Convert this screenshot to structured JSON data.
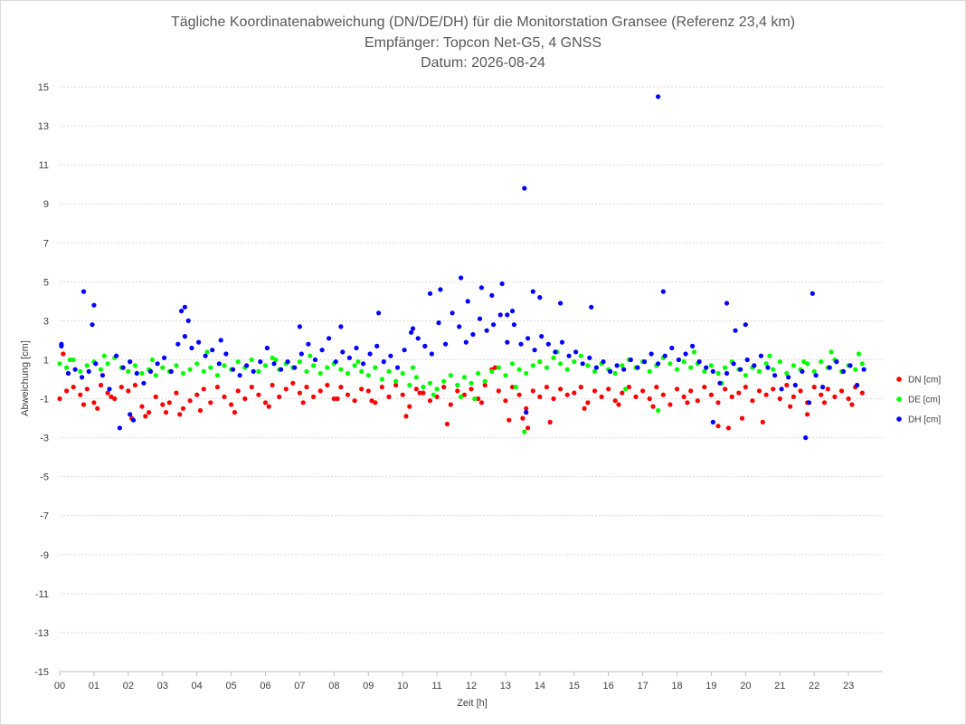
{
  "chart_data": {
    "type": "scatter",
    "title_lines": [
      "Tägliche Koordinatenabweichung (DN/DE/DH) für die Monitorstation Gransee (Referenz 23,4 km)",
      "Empfänger: Topcon Net-G5, 4 GNSS",
      "Datum: 2026-08-24"
    ],
    "xlabel": "Zeit [h]",
    "ylabel": "Abweichung [cm]",
    "xlim": [
      0,
      24
    ],
    "ylim": [
      -15,
      15
    ],
    "x_ticks": [
      0,
      1,
      2,
      3,
      4,
      5,
      6,
      7,
      8,
      9,
      10,
      11,
      12,
      13,
      14,
      15,
      16,
      17,
      18,
      19,
      20,
      21,
      22,
      23
    ],
    "x_tick_labels": [
      "00",
      "01",
      "02",
      "03",
      "04",
      "05",
      "06",
      "07",
      "08",
      "09",
      "10",
      "11",
      "12",
      "13",
      "14",
      "15",
      "16",
      "17",
      "18",
      "19",
      "20",
      "21",
      "22",
      "23"
    ],
    "y_ticks": [
      -15,
      -13,
      -11,
      -9,
      -7,
      -5,
      -3,
      -1,
      1,
      3,
      5,
      7,
      9,
      11,
      13,
      15
    ],
    "y_tick_labels": [
      "-15",
      "-13",
      "-11",
      "-9",
      "-7",
      "-5",
      "-3",
      "-1",
      "1",
      "3",
      "5",
      "7",
      "9",
      "11",
      "13",
      "15"
    ],
    "grid": true,
    "legend_position": "right",
    "series": [
      {
        "name": "DN [cm]",
        "color": "#ff0000",
        "x": [
          0.0,
          0.2,
          0.4,
          0.6,
          0.8,
          1.0,
          1.2,
          1.4,
          1.6,
          1.8,
          2.0,
          2.2,
          2.4,
          2.6,
          2.8,
          3.0,
          3.2,
          3.4,
          3.6,
          3.8,
          4.0,
          4.2,
          4.4,
          4.6,
          4.8,
          5.0,
          5.2,
          5.4,
          5.6,
          5.8,
          6.0,
          6.2,
          6.4,
          6.6,
          6.8,
          7.0,
          7.2,
          7.4,
          7.6,
          7.8,
          8.0,
          8.2,
          8.4,
          8.6,
          8.8,
          9.0,
          9.2,
          9.4,
          9.6,
          9.8,
          10.0,
          10.2,
          10.4,
          10.6,
          10.8,
          11.0,
          11.2,
          11.4,
          11.6,
          11.8,
          12.0,
          12.2,
          12.4,
          12.6,
          12.8,
          13.0,
          13.2,
          13.4,
          13.6,
          13.8,
          14.0,
          14.2,
          14.4,
          14.6,
          14.8,
          15.0,
          15.2,
          15.4,
          15.6,
          15.8,
          16.0,
          16.2,
          16.4,
          16.6,
          16.8,
          17.0,
          17.2,
          17.4,
          17.6,
          17.8,
          18.0,
          18.2,
          18.4,
          18.6,
          18.8,
          19.0,
          19.2,
          19.4,
          19.6,
          19.8,
          20.0,
          20.2,
          20.4,
          20.6,
          20.8,
          21.0,
          21.2,
          21.4,
          21.6,
          21.8,
          22.0,
          22.2,
          22.4,
          22.6,
          22.8,
          23.0,
          23.2,
          23.4,
          0.1,
          0.7,
          1.1,
          1.5,
          2.1,
          2.5,
          3.1,
          3.5,
          4.1,
          5.1,
          6.1,
          7.1,
          8.1,
          9.1,
          10.1,
          10.5,
          11.3,
          12.3,
          12.7,
          13.1,
          13.5,
          13.65,
          14.3,
          15.3,
          16.3,
          17.3,
          18.3,
          19.2,
          19.5,
          19.9,
          20.5,
          21.3,
          21.8,
          22.3,
          23.1
        ],
        "y": [
          -1.0,
          -0.6,
          -0.4,
          -0.8,
          -0.5,
          -1.2,
          -0.3,
          -0.7,
          -1.0,
          -0.4,
          -0.6,
          -0.3,
          -1.4,
          -1.7,
          -0.9,
          -1.3,
          -1.2,
          -0.7,
          -1.5,
          -1.1,
          -0.8,
          -0.5,
          -1.2,
          -0.4,
          -0.9,
          -1.3,
          -0.6,
          -1.0,
          -0.4,
          -0.8,
          -1.2,
          -0.3,
          -0.9,
          -0.5,
          -0.2,
          -0.7,
          -0.4,
          -0.9,
          -0.6,
          -0.3,
          -1.0,
          -0.4,
          -0.8,
          -1.1,
          -0.5,
          -0.6,
          -1.2,
          -0.4,
          -0.9,
          -0.3,
          -0.8,
          -1.4,
          -0.5,
          -0.7,
          -1.1,
          -0.9,
          -0.4,
          -1.3,
          -0.6,
          -0.8,
          -0.5,
          -1.0,
          -0.3,
          0.5,
          -0.6,
          -1.1,
          -0.4,
          -0.8,
          -1.5,
          -0.6,
          -0.9,
          -0.4,
          -1.0,
          -0.5,
          -0.8,
          -0.7,
          -0.4,
          -1.2,
          -0.6,
          -0.9,
          -0.5,
          -1.1,
          -0.7,
          -0.4,
          -0.9,
          -0.6,
          -1.0,
          -0.4,
          -0.8,
          -1.3,
          -0.5,
          -0.9,
          -0.6,
          -1.1,
          -0.4,
          -0.8,
          -1.2,
          -0.5,
          -0.9,
          -0.7,
          -0.4,
          -1.1,
          -0.6,
          -0.8,
          -0.5,
          -1.0,
          -0.3,
          -0.9,
          -0.6,
          -1.2,
          -0.4,
          -0.8,
          -0.5,
          -0.9,
          -0.6,
          -1.0,
          -0.4,
          -0.7,
          1.3,
          -1.3,
          -1.5,
          -0.9,
          -2.0,
          -1.9,
          -1.7,
          -1.8,
          -1.6,
          -1.7,
          -1.4,
          -1.2,
          -1.0,
          -1.1,
          -1.9,
          -0.7,
          -2.3,
          -1.2,
          0.6,
          -2.1,
          -2.0,
          -2.5,
          -2.2,
          -1.5,
          -1.3,
          -1.4,
          -1.2,
          -2.4,
          -2.5,
          -2.0,
          -2.2,
          -1.4,
          -1.8,
          -1.2,
          -1.3
        ]
      },
      {
        "name": "DE [cm]",
        "color": "#00ff00",
        "x": [
          0.0,
          0.2,
          0.4,
          0.6,
          0.8,
          1.0,
          1.2,
          1.4,
          1.6,
          1.8,
          2.0,
          2.2,
          2.4,
          2.6,
          2.8,
          3.0,
          3.2,
          3.4,
          3.6,
          3.8,
          4.0,
          4.2,
          4.4,
          4.6,
          4.8,
          5.0,
          5.2,
          5.4,
          5.6,
          5.8,
          6.0,
          6.2,
          6.4,
          6.6,
          6.8,
          7.0,
          7.2,
          7.4,
          7.6,
          7.8,
          8.0,
          8.2,
          8.4,
          8.6,
          8.8,
          9.0,
          9.2,
          9.4,
          9.6,
          9.8,
          10.0,
          10.2,
          10.4,
          10.6,
          10.8,
          11.0,
          11.2,
          11.4,
          11.6,
          11.8,
          12.0,
          12.2,
          12.4,
          12.6,
          12.8,
          13.0,
          13.2,
          13.4,
          13.6,
          13.8,
          14.0,
          14.2,
          14.4,
          14.6,
          14.8,
          15.0,
          15.2,
          15.4,
          15.6,
          15.8,
          16.0,
          16.2,
          16.4,
          16.6,
          16.8,
          17.0,
          17.2,
          17.4,
          17.6,
          17.8,
          18.0,
          18.2,
          18.4,
          18.6,
          18.8,
          19.0,
          19.2,
          19.4,
          19.6,
          19.8,
          20.0,
          20.2,
          20.4,
          20.6,
          20.8,
          21.0,
          21.2,
          21.4,
          21.6,
          21.8,
          22.0,
          22.2,
          22.4,
          22.6,
          22.8,
          23.0,
          23.2,
          23.4,
          0.3,
          1.3,
          2.7,
          4.3,
          6.3,
          7.3,
          8.7,
          10.3,
          10.9,
          11.7,
          12.1,
          13.3,
          13.55,
          14.5,
          16.5,
          17.45,
          18.5,
          19.3,
          20.7,
          21.7,
          22.5,
          23.3
        ],
        "y": [
          0.8,
          0.6,
          1.0,
          0.4,
          0.7,
          0.9,
          0.5,
          0.8,
          1.1,
          0.6,
          0.4,
          0.7,
          0.3,
          0.5,
          0.2,
          0.6,
          0.4,
          0.7,
          0.3,
          0.5,
          0.8,
          0.4,
          0.6,
          0.2,
          0.7,
          0.5,
          0.9,
          0.6,
          1.0,
          0.4,
          0.7,
          1.1,
          0.5,
          0.8,
          0.6,
          0.9,
          0.4,
          0.7,
          0.3,
          0.6,
          0.8,
          0.5,
          0.3,
          0.7,
          0.4,
          0.2,
          0.6,
          0.0,
          0.4,
          -0.1,
          0.3,
          -0.3,
          0.1,
          -0.4,
          -0.2,
          -0.5,
          -0.1,
          0.2,
          -0.3,
          0.1,
          -0.2,
          0.3,
          -0.1,
          0.4,
          0.6,
          0.2,
          0.8,
          0.5,
          0.3,
          0.7,
          0.9,
          0.6,
          1.1,
          0.8,
          0.5,
          0.9,
          1.2,
          0.7,
          0.4,
          0.8,
          0.5,
          0.3,
          0.7,
          1.0,
          0.6,
          0.9,
          0.4,
          0.7,
          1.1,
          0.8,
          0.5,
          0.9,
          0.6,
          0.8,
          0.4,
          0.7,
          0.3,
          0.6,
          0.9,
          0.5,
          0.2,
          0.6,
          0.4,
          0.8,
          0.5,
          0.9,
          0.3,
          0.7,
          0.5,
          0.8,
          0.4,
          0.9,
          0.6,
          1.0,
          0.4,
          0.7,
          0.5,
          0.8,
          1.0,
          1.2,
          1.0,
          1.4,
          1.0,
          1.2,
          0.9,
          0.6,
          -0.8,
          -0.9,
          -1.0,
          -0.4,
          -2.7,
          1.4,
          -0.5,
          -1.6,
          1.4,
          -0.2,
          1.2,
          0.9,
          1.4,
          1.3
        ]
      },
      {
        "name": "DH [cm]",
        "color": "#0000ff",
        "x": [
          0.05,
          0.25,
          0.45,
          0.65,
          0.85,
          1.05,
          1.25,
          1.45,
          1.65,
          1.85,
          2.05,
          2.25,
          2.45,
          2.65,
          2.85,
          3.05,
          3.25,
          3.45,
          3.65,
          3.85,
          4.05,
          4.25,
          4.45,
          4.65,
          4.85,
          5.05,
          5.25,
          5.45,
          5.65,
          5.85,
          6.05,
          6.25,
          6.45,
          6.65,
          6.85,
          7.05,
          7.25,
          7.45,
          7.65,
          7.85,
          8.05,
          8.25,
          8.45,
          8.65,
          8.85,
          9.05,
          9.25,
          9.45,
          9.65,
          9.85,
          10.05,
          10.25,
          10.45,
          10.65,
          10.85,
          11.05,
          11.25,
          11.45,
          11.65,
          11.85,
          12.05,
          12.25,
          12.45,
          12.65,
          12.85,
          13.05,
          13.25,
          13.45,
          13.65,
          13.85,
          14.05,
          14.25,
          14.45,
          14.65,
          14.85,
          15.05,
          15.25,
          15.45,
          15.65,
          15.85,
          16.05,
          16.25,
          16.45,
          16.65,
          16.85,
          17.05,
          17.25,
          17.45,
          17.65,
          17.85,
          18.05,
          18.25,
          18.45,
          18.65,
          18.85,
          19.05,
          19.25,
          19.45,
          19.65,
          19.85,
          20.05,
          20.25,
          20.45,
          20.65,
          20.85,
          21.05,
          21.25,
          21.45,
          21.65,
          21.85,
          22.05,
          22.25,
          22.45,
          22.65,
          22.85,
          23.05,
          23.25,
          23.45,
          0.05,
          0.7,
          0.95,
          1.0,
          1.75,
          2.05,
          2.15,
          3.55,
          3.65,
          3.75,
          4.7,
          7.0,
          8.2,
          9.3,
          10.3,
          10.8,
          11.1,
          11.7,
          11.9,
          12.3,
          12.6,
          12.9,
          13.05,
          13.2,
          13.55,
          13.6,
          13.8,
          14.0,
          14.6,
          15.5,
          17.45,
          17.6,
          19.05,
          19.45,
          19.7,
          20.0,
          21.75,
          21.95
        ],
        "y": [
          1.7,
          0.3,
          0.5,
          0.1,
          0.4,
          0.8,
          0.2,
          -0.5,
          1.2,
          0.6,
          0.9,
          0.3,
          -0.2,
          0.4,
          0.8,
          1.1,
          0.4,
          1.8,
          2.2,
          1.6,
          1.9,
          1.2,
          1.5,
          0.8,
          1.3,
          0.5,
          0.2,
          0.7,
          0.4,
          0.9,
          1.6,
          0.8,
          0.5,
          0.9,
          0.6,
          1.3,
          1.8,
          1.0,
          1.5,
          2.1,
          0.9,
          1.4,
          1.1,
          1.6,
          0.8,
          1.3,
          1.7,
          0.9,
          1.2,
          0.6,
          1.5,
          2.4,
          2.1,
          1.7,
          1.3,
          2.9,
          1.8,
          3.4,
          2.7,
          1.9,
          2.3,
          3.1,
          2.5,
          2.8,
          3.3,
          1.9,
          2.8,
          1.8,
          2.1,
          1.5,
          2.2,
          1.8,
          1.4,
          1.9,
          1.2,
          1.4,
          0.8,
          1.1,
          0.6,
          0.9,
          0.4,
          0.7,
          0.5,
          1.0,
          0.6,
          0.9,
          1.3,
          0.8,
          1.2,
          1.6,
          1.0,
          1.3,
          1.7,
          0.9,
          0.6,
          0.4,
          -0.2,
          0.3,
          0.8,
          0.5,
          1.0,
          0.7,
          1.2,
          0.6,
          0.2,
          -0.5,
          0.1,
          -0.3,
          0.4,
          -1.2,
          0.2,
          -0.4,
          0.6,
          0.9,
          0.4,
          0.7,
          -0.3,
          0.5,
          1.8,
          4.5,
          2.8,
          3.8,
          -2.5,
          -1.8,
          -2.1,
          3.5,
          3.7,
          3.0,
          2.0,
          2.7,
          2.7,
          3.4,
          2.6,
          4.4,
          4.6,
          5.2,
          4.0,
          4.7,
          4.3,
          4.9,
          3.3,
          3.5,
          9.8,
          -1.7,
          4.5,
          4.2,
          3.9,
          3.7,
          14.5,
          4.5,
          -2.2,
          3.9,
          2.5,
          2.8,
          -3.0,
          4.4
        ]
      }
    ]
  }
}
